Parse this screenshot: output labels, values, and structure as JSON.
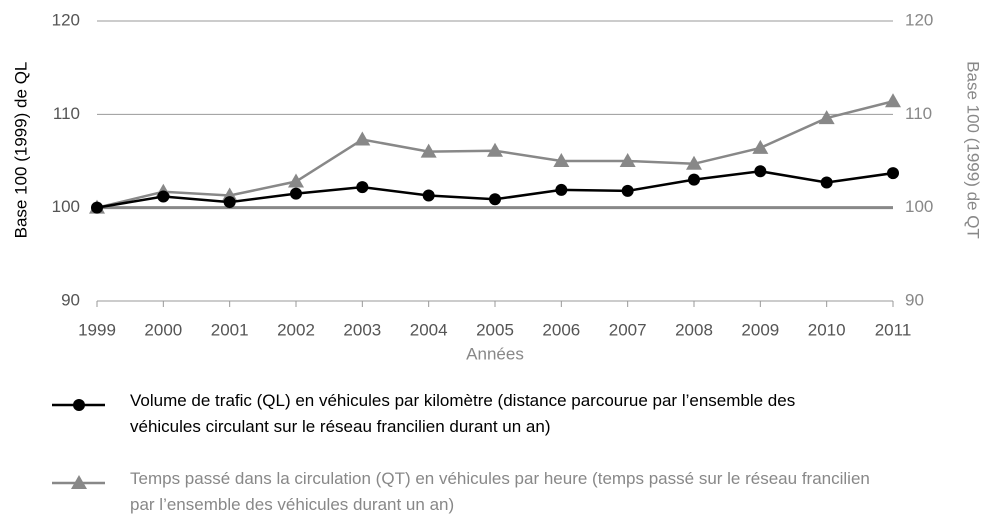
{
  "chart_data": {
    "type": "line",
    "y_label": "Base 100 (1999) de QL",
    "y2_label": "Base 100 (1999) de QT",
    "x_label": "Années",
    "categories": [
      "1999",
      "2000",
      "2001",
      "2002",
      "2003",
      "2004",
      "2005",
      "2006",
      "2007",
      "2008",
      "2009",
      "2010",
      "2011"
    ],
    "series": [
      {
        "name": "Volume de trafic (QL) en véhicules par kilomètre (distance parcourue par l’ensemble des véhicules circulant sur le réseau francilien durant un an)",
        "color": "#000000",
        "marker": "circle",
        "values": [
          100,
          101.2,
          100.6,
          101.5,
          102.2,
          101.3,
          100.9,
          101.9,
          101.8,
          103.0,
          103.9,
          102.7,
          103.7
        ]
      },
      {
        "name": "Temps passé dans la circulation (QT) en véhicules par heure (temps passé sur le réseau francilien par l’ensemble des véhicules durant un an)",
        "color": "#888888",
        "marker": "triangle",
        "axis": "y2",
        "values": [
          100,
          101.7,
          101.3,
          102.8,
          107.3,
          106.0,
          106.1,
          105.0,
          105.0,
          104.7,
          106.4,
          109.6,
          111.4
        ]
      }
    ],
    "ylim": [
      90,
      120
    ],
    "yticks": [
      90,
      100,
      110,
      120
    ],
    "y2lim": [
      90,
      120
    ],
    "y2ticks": [
      90,
      100,
      110,
      120
    ],
    "baseline": 100,
    "grid": true
  }
}
